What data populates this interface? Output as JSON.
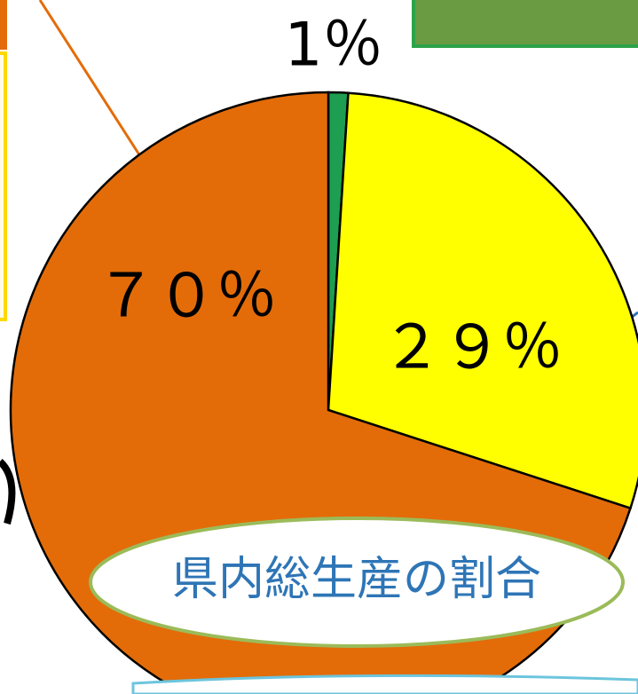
{
  "chart_data": {
    "type": "pie",
    "values": [
      1,
      29,
      70
    ],
    "value_labels": [
      "1％",
      "２９％",
      "７０％"
    ],
    "colors": [
      "#1d9e50",
      "#ffff00",
      "#e36c09"
    ],
    "annotation": "県内総生産の割合"
  }
}
